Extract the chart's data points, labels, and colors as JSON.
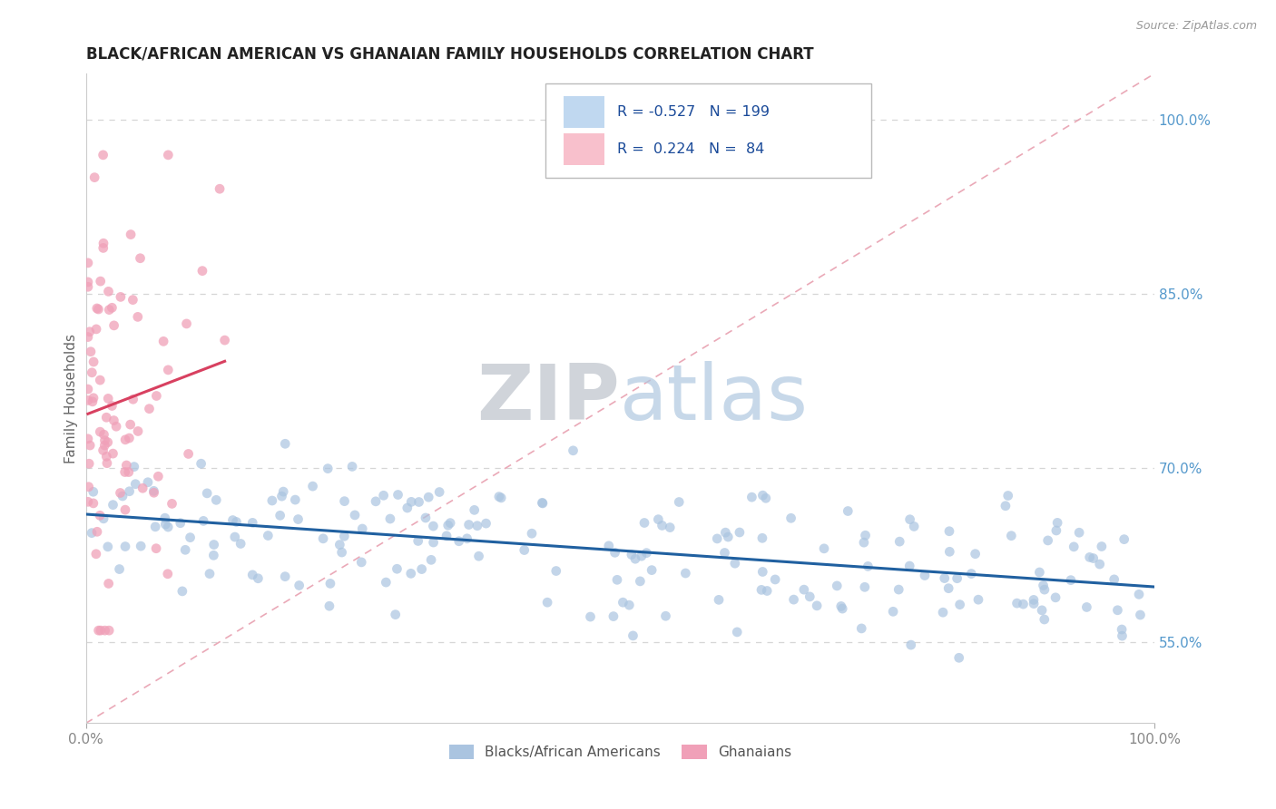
{
  "title": "BLACK/AFRICAN AMERICAN VS GHANAIAN FAMILY HOUSEHOLDS CORRELATION CHART",
  "source_text": "Source: ZipAtlas.com",
  "ylabel": "Family Households",
  "right_yticklabels": [
    "55.0%",
    "70.0%",
    "85.0%",
    "100.0%"
  ],
  "right_yticks": [
    0.55,
    0.7,
    0.85,
    1.0
  ],
  "xlim": [
    0.0,
    1.0
  ],
  "ylim": [
    0.48,
    1.04
  ],
  "blue_R": -0.527,
  "blue_N": 199,
  "pink_R": 0.224,
  "pink_N": 84,
  "blue_color": "#aac4e0",
  "pink_color": "#f0a0b8",
  "blue_line_color": "#2060a0",
  "pink_line_color": "#d84060",
  "diag_line_color": "#e8a0b0",
  "grid_color": "#cccccc",
  "title_color": "#222222",
  "legend_box_blue": "#c0d8f0",
  "legend_box_pink": "#f8c0cc",
  "legend_text_color": "#1a4a99",
  "legend_N_color": "#222222"
}
